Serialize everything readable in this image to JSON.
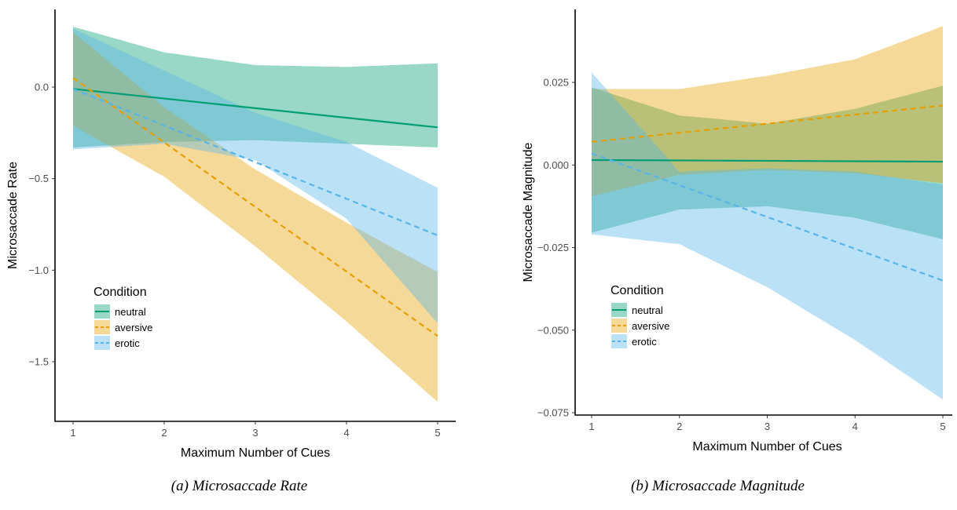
{
  "colors": {
    "neutral": "#009E73",
    "aversive": "#E69F00",
    "erotic": "#56B4E9"
  },
  "captions": [
    "(a) Microsaccade Rate",
    "(b) Microsaccade Magnitude"
  ],
  "chart_data": [
    {
      "type": "line",
      "xlabel": "Maximum Number of Cues",
      "ylabel": "Microsaccade Rate",
      "xlim": [
        1,
        5
      ],
      "ylim": [
        -1.75,
        0.35
      ],
      "xticks": [
        1,
        2,
        3,
        4,
        5
      ],
      "yticks": [
        -1.5,
        -1.0,
        -0.5,
        0.0
      ],
      "ytick_labels": [
        "−1.5",
        "−1.0",
        "−0.5",
        "0.0"
      ],
      "legend": {
        "title": "Condition",
        "placement": "bottom-left"
      },
      "series": [
        {
          "name": "neutral",
          "linestyle": "solid",
          "color": "#009E73",
          "x": [
            1,
            5
          ],
          "y": [
            -0.01,
            -0.22
          ],
          "band_x": [
            1,
            2,
            3,
            4,
            5
          ],
          "band_lower": [
            -0.33,
            -0.3,
            -0.29,
            -0.31,
            -0.33
          ],
          "band_upper": [
            0.33,
            0.19,
            0.12,
            0.11,
            0.13
          ]
        },
        {
          "name": "aversive",
          "linestyle": "dashed",
          "color": "#E69F00",
          "x": [
            1,
            5
          ],
          "y": [
            0.05,
            -1.36
          ],
          "band_x": [
            1,
            2,
            3,
            4,
            5
          ],
          "band_lower": [
            -0.21,
            -0.49,
            -0.87,
            -1.28,
            -1.72
          ],
          "band_upper": [
            0.3,
            -0.11,
            -0.45,
            -0.74,
            -1.01
          ]
        },
        {
          "name": "erotic",
          "linestyle": "dashed",
          "color": "#56B4E9",
          "x": [
            1,
            5
          ],
          "y": [
            -0.01,
            -0.81
          ],
          "band_x": [
            1,
            2,
            3,
            4,
            5
          ],
          "band_lower": [
            -0.34,
            -0.31,
            -0.4,
            -0.72,
            -1.29
          ],
          "band_upper": [
            0.32,
            0.09,
            -0.14,
            -0.3,
            -0.55
          ]
        }
      ]
    },
    {
      "type": "line",
      "xlabel": "Maximum Number of Cues",
      "ylabel": "Microsaccade Magnitude",
      "xlim": [
        1,
        5
      ],
      "ylim": [
        -0.077,
        0.041
      ],
      "xticks": [
        1,
        2,
        3,
        4,
        5
      ],
      "yticks": [
        -0.075,
        -0.05,
        -0.025,
        0.0,
        0.025
      ],
      "ytick_labels": [
        "−0.075",
        "−0.050",
        "−0.025",
        "0.000",
        "0.025"
      ],
      "legend": {
        "title": "Condition",
        "placement": "bottom-left"
      },
      "series": [
        {
          "name": "neutral",
          "linestyle": "solid",
          "color": "#009E73",
          "x": [
            1,
            5
          ],
          "y": [
            0.0015,
            0.001
          ],
          "band_x": [
            1,
            2,
            3,
            4,
            5
          ],
          "band_lower": [
            -0.0205,
            -0.0135,
            -0.0125,
            -0.016,
            -0.0225
          ],
          "band_upper": [
            0.0235,
            0.015,
            0.0125,
            0.017,
            0.024
          ]
        },
        {
          "name": "aversive",
          "linestyle": "dashed",
          "color": "#E69F00",
          "x": [
            1,
            5
          ],
          "y": [
            0.007,
            0.018
          ],
          "band_x": [
            1,
            2,
            3,
            4,
            5
          ],
          "band_lower": [
            -0.0095,
            -0.003,
            -0.0015,
            -0.0025,
            -0.0055
          ],
          "band_upper": [
            0.023,
            0.023,
            0.027,
            0.032,
            0.042
          ]
        },
        {
          "name": "erotic",
          "linestyle": "dashed",
          "color": "#56B4E9",
          "x": [
            1,
            5
          ],
          "y": [
            0.0035,
            -0.035
          ],
          "band_x": [
            1,
            2,
            3,
            4,
            5
          ],
          "band_lower": [
            -0.021,
            -0.024,
            -0.037,
            -0.053,
            -0.071
          ],
          "band_upper": [
            0.028,
            -0.002,
            -0.001,
            -0.002,
            -0.006
          ]
        }
      ]
    }
  ]
}
